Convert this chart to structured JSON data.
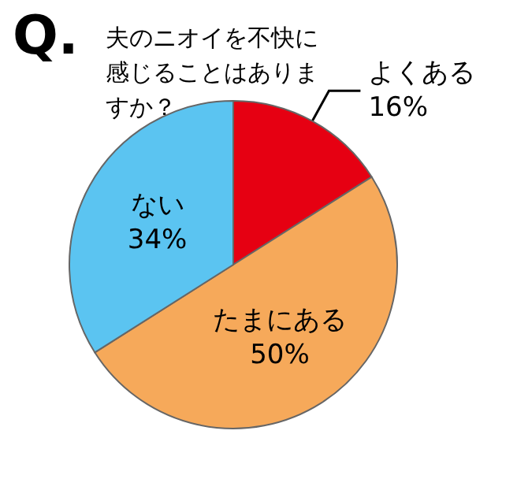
{
  "chart_data": {
    "type": "pie",
    "title": "夫のニオイを不快に感じることはありますか？",
    "annotations": [
      "Q."
    ],
    "categories": [
      "よくある",
      "たまにある",
      "ない"
    ],
    "values": [
      16,
      50,
      34
    ],
    "colors": [
      "#e60012",
      "#f6a95a",
      "#5bc4f1"
    ],
    "value_labels": [
      "16%",
      "50%",
      "34%"
    ],
    "legend": false
  }
}
